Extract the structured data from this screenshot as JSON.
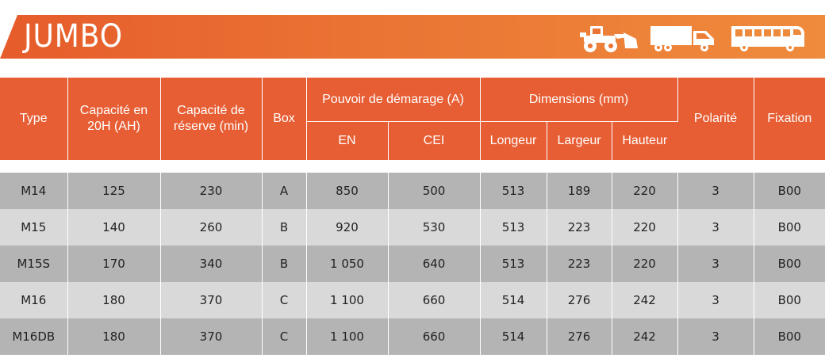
{
  "banner": {
    "title": "JUMBO",
    "icons": [
      "wheel-loader-icon",
      "truck-icon",
      "bus-icon"
    ]
  },
  "table": {
    "headers": {
      "type": "Type",
      "capacity": "Capacité en 20H (AH)",
      "reserve": "Capacité de réserve (min)",
      "box": "Box",
      "cranking": "Pouvoir de démarage (A)",
      "en": "EN",
      "cei": "CEI",
      "dimensions": "Dimensions (mm)",
      "length": "Longeur",
      "width": "Largeur",
      "height": "Hauteur",
      "polarity": "Polarité",
      "fixation": "Fixation"
    },
    "rows": [
      {
        "type": "M14",
        "capacity": "125",
        "reserve": "230",
        "box": "A",
        "en": "850",
        "cei": "500",
        "length": "513",
        "width": "189",
        "height": "220",
        "polarity": "3",
        "fixation": "B00"
      },
      {
        "type": "M15",
        "capacity": "140",
        "reserve": "260",
        "box": "B",
        "en": "920",
        "cei": "530",
        "length": "513",
        "width": "223",
        "height": "220",
        "polarity": "3",
        "fixation": "B00"
      },
      {
        "type": "M15S",
        "capacity": "170",
        "reserve": "340",
        "box": "B",
        "en": "1 050",
        "cei": "640",
        "length": "513",
        "width": "223",
        "height": "220",
        "polarity": "3",
        "fixation": "B00"
      },
      {
        "type": "M16",
        "capacity": "180",
        "reserve": "370",
        "box": "C",
        "en": "1 100",
        "cei": "660",
        "length": "514",
        "width": "276",
        "height": "242",
        "polarity": "3",
        "fixation": "B00"
      },
      {
        "type": "M16DB",
        "capacity": "180",
        "reserve": "370",
        "box": "C",
        "en": "1 100",
        "cei": "660",
        "length": "514",
        "width": "276",
        "height": "242",
        "polarity": "3",
        "fixation": "B00"
      }
    ]
  },
  "colors": {
    "header_orange": "#e75e34",
    "banner_start": "#e65c2b",
    "banner_end": "#ef8b3c",
    "row_dark": "#b4b4b4",
    "row_light": "#d9d9d9"
  }
}
